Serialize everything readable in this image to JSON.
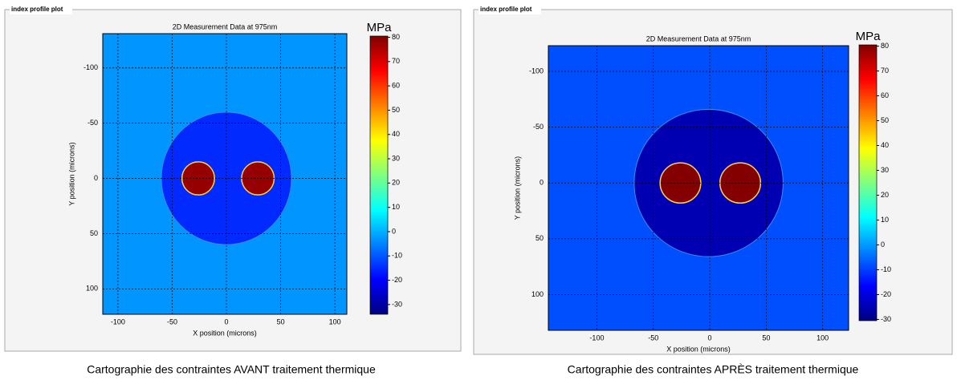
{
  "chart_data": [
    {
      "type": "heatmap",
      "panel_title": "index profile plot",
      "title": "2D Measurement Data at 975nm",
      "xlabel": "X position (microns)",
      "ylabel": "Y position (microns)",
      "xlim": [
        -114,
        111
      ],
      "ylim": [
        -131,
        123
      ],
      "xticks": [
        -100,
        -50,
        0,
        50,
        100
      ],
      "yticks": [
        -100,
        -50,
        0,
        50,
        100
      ],
      "grid": true,
      "colorbar": {
        "label": "MPa",
        "lim": [
          -34,
          80.5
        ],
        "ticks": [
          80,
          70,
          60,
          50,
          40,
          30,
          20,
          10,
          0,
          -10,
          -20,
          -30
        ]
      },
      "background_value": -3,
      "regions": [
        {
          "x": 0,
          "y": 0,
          "r": 60,
          "value": -15
        },
        {
          "x": -26,
          "y": 0,
          "r": 15,
          "value": 78
        },
        {
          "x": 29,
          "y": 0,
          "r": 15,
          "value": 78
        }
      ],
      "caption": "Cartographie des contraintes AVANT traitement thermique"
    },
    {
      "type": "heatmap",
      "panel_title": "index profile plot",
      "title": "2D Measurement Data at 975nm",
      "xlabel": "X position (microns)",
      "ylabel": "Y position (microns)",
      "xlim": [
        -143,
        123
      ],
      "ylim": [
        -123,
        132
      ],
      "xticks": [
        -100,
        -50,
        0,
        50,
        100
      ],
      "yticks": [
        -100,
        -50,
        0,
        50,
        100
      ],
      "grid": true,
      "colorbar": {
        "label": "MPa",
        "lim": [
          -30.5,
          80.5
        ],
        "ticks": [
          80,
          70,
          60,
          50,
          40,
          30,
          20,
          10,
          0,
          -10,
          -20,
          -30
        ]
      },
      "background_value": -8,
      "regions": [
        {
          "x": -1,
          "y": 0,
          "r": 66,
          "value": -25
        },
        {
          "x": -26,
          "y": 0,
          "r": 18,
          "value": 80
        },
        {
          "x": 27,
          "y": 0,
          "r": 18,
          "value": 80
        }
      ],
      "caption": "Cartographie des contraintes APRÈS traitement thermique"
    }
  ]
}
